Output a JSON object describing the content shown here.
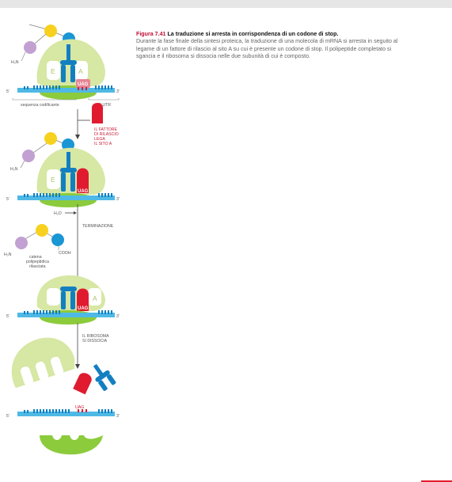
{
  "caption": {
    "heading": "Figura 7.41",
    "title": "La traduzione si arresta in corrispondenza di un codone di stop.",
    "body": "Durante la fase finale della sintesi proteica, la traduzione di una molecola di mRNA si arresta in seguito al legame di un fattore di rilascio al sito A su cui è presente un codone di stop. Il polipeptide completato si sgancia e il ribosoma si dissocia nelle due subunità di cui è composto."
  },
  "labels": {
    "amino_group": "H₂N",
    "site_e": "E",
    "site_a": "A",
    "stop_codon": "UAG",
    "end_5": "5'",
    "end_3": "3'",
    "coding_sequence": "sequenza codificante",
    "utr_3": "3' UTR",
    "release_factor": [
      "IL FATTORE",
      "DI RILASCIO",
      "LEGA",
      "IL SITO A"
    ],
    "water": "H₂O",
    "termination": "TERMINAZIONE",
    "carboxyl_group": "COOH",
    "released_chain": [
      "catena",
      "polipeptidica",
      "rilasciata"
    ],
    "dissociation": [
      "IL RIBOSOMA",
      "SI DISSOCIA"
    ]
  },
  "colors": {
    "ribosome": "#d7e7a4",
    "ribosome_dark": "#b5d377",
    "small_subunit": "#8ccb3c",
    "mrna": "#4fb9e5",
    "trna": "#137fc1",
    "release_factor": "#e01b2f",
    "amino_yellow": "#f7d11e",
    "amino_purple": "#c2a0d2",
    "caption_red": "#c00d33"
  }
}
